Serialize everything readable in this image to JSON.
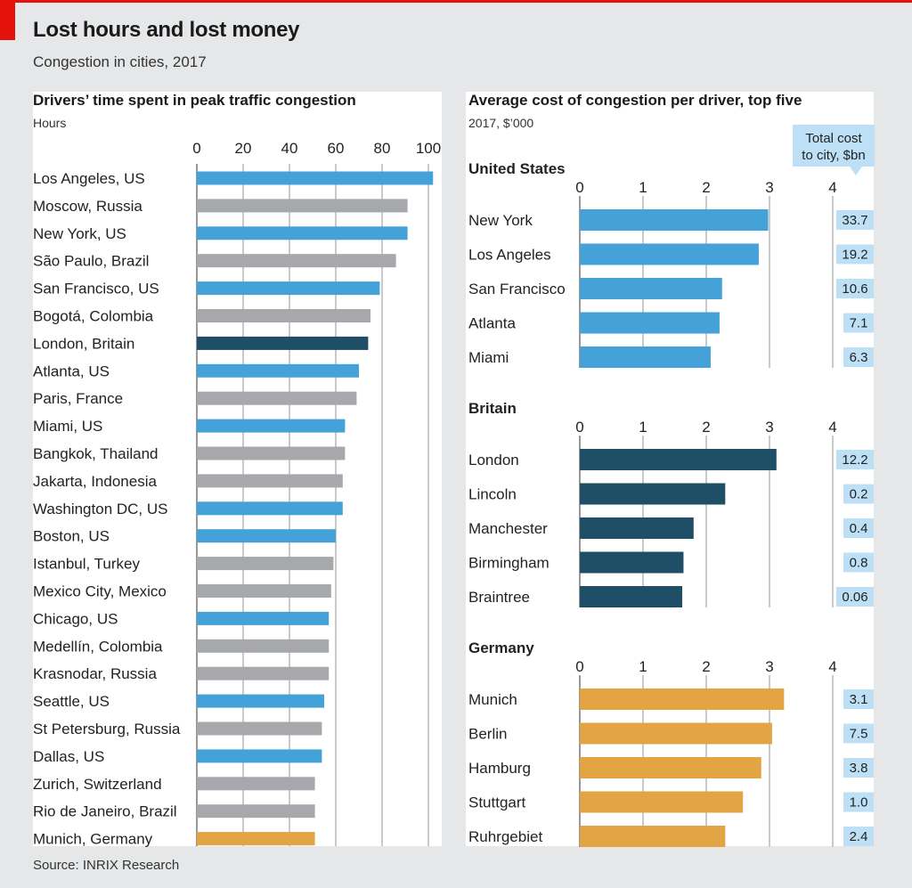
{
  "header": {
    "title": "Lost hours and lost money",
    "subtitle": "Congestion in cities, 2017"
  },
  "footer": {
    "source": "Source: INRIX Research"
  },
  "colors": {
    "us": "#44a2d8",
    "other": "#a7a8ab",
    "britain": "#1f4e67",
    "germany": "#e3a443",
    "total_box": "#bde0f6",
    "gridline": "#c9c9c9",
    "accent_red": "#e3120b"
  },
  "chart_data": [
    {
      "type": "bar",
      "orientation": "horizontal",
      "title": "Drivers’ time spent in peak traffic congestion",
      "unit_label": "Hours",
      "xlabel": "",
      "ylabel": "",
      "xlim": [
        0,
        100
      ],
      "ticks": [
        "0",
        "20",
        "40",
        "60",
        "80",
        "100"
      ],
      "tick_values": [
        0,
        20,
        40,
        60,
        80,
        100
      ],
      "grid": true,
      "categories": [
        "Los Angeles, US",
        "Moscow, Russia",
        "New York, US",
        "São Paulo, Brazil",
        "San Francisco, US",
        "Bogotá, Colombia",
        "London, Britain",
        "Atlanta, US",
        "Paris, France",
        "Miami, US",
        "Bangkok, Thailand",
        "Jakarta, Indonesia",
        "Washington DC, US",
        "Boston, US",
        "Istanbul, Turkey",
        "Mexico City, Mexico",
        "Chicago, US",
        "Medellín, Colombia",
        "Krasnodar, Russia",
        "Seattle, US",
        "St Petersburg, Russia",
        "Dallas, US",
        "Zurich, Switzerland",
        "Rio de Janeiro, Brazil",
        "Munich, Germany"
      ],
      "values": [
        102,
        91,
        91,
        86,
        79,
        75,
        74,
        70,
        69,
        64,
        64,
        63,
        63,
        60,
        59,
        58,
        57,
        57,
        57,
        55,
        54,
        54,
        51,
        51,
        51
      ],
      "groups": [
        "us",
        "other",
        "us",
        "other",
        "us",
        "other",
        "britain",
        "us",
        "other",
        "us",
        "other",
        "other",
        "us",
        "us",
        "other",
        "other",
        "us",
        "other",
        "other",
        "us",
        "other",
        "us",
        "other",
        "other",
        "germany"
      ]
    },
    {
      "type": "bar",
      "orientation": "horizontal",
      "title": "Average cost of congestion per driver, top five",
      "unit_label": "2017, $’000",
      "xlim": [
        0,
        4
      ],
      "ticks": [
        "0",
        "1",
        "2",
        "3",
        "4"
      ],
      "tick_values": [
        0,
        1,
        2,
        3,
        4
      ],
      "grid": true,
      "annotation": "Total cost to city, $bn",
      "annotation_lines": [
        "Total cost",
        "to city, $bn"
      ],
      "panels": [
        {
          "name": "United States",
          "group": "us",
          "categories": [
            "New York",
            "Los Angeles",
            "San Francisco",
            "Atlanta",
            "Miami"
          ],
          "values": [
            2.98,
            2.83,
            2.25,
            2.21,
            2.07
          ],
          "total_cost_bn": [
            "33.7",
            "19.2",
            "10.6",
            "7.1",
            "6.3"
          ]
        },
        {
          "name": "Britain",
          "group": "britain",
          "categories": [
            "London",
            "Lincoln",
            "Manchester",
            "Birmingham",
            "Braintree"
          ],
          "values": [
            3.11,
            2.3,
            1.8,
            1.64,
            1.62
          ],
          "total_cost_bn": [
            "12.2",
            "0.2",
            "0.4",
            "0.8",
            "0.06"
          ]
        },
        {
          "name": "Germany",
          "group": "germany",
          "categories": [
            "Munich",
            "Berlin",
            "Hamburg",
            "Stuttgart",
            "Ruhrgebiet"
          ],
          "values": [
            3.23,
            3.04,
            2.87,
            2.58,
            2.3
          ],
          "total_cost_bn": [
            "3.1",
            "7.5",
            "3.8",
            "1.0",
            "2.4"
          ]
        }
      ]
    }
  ]
}
